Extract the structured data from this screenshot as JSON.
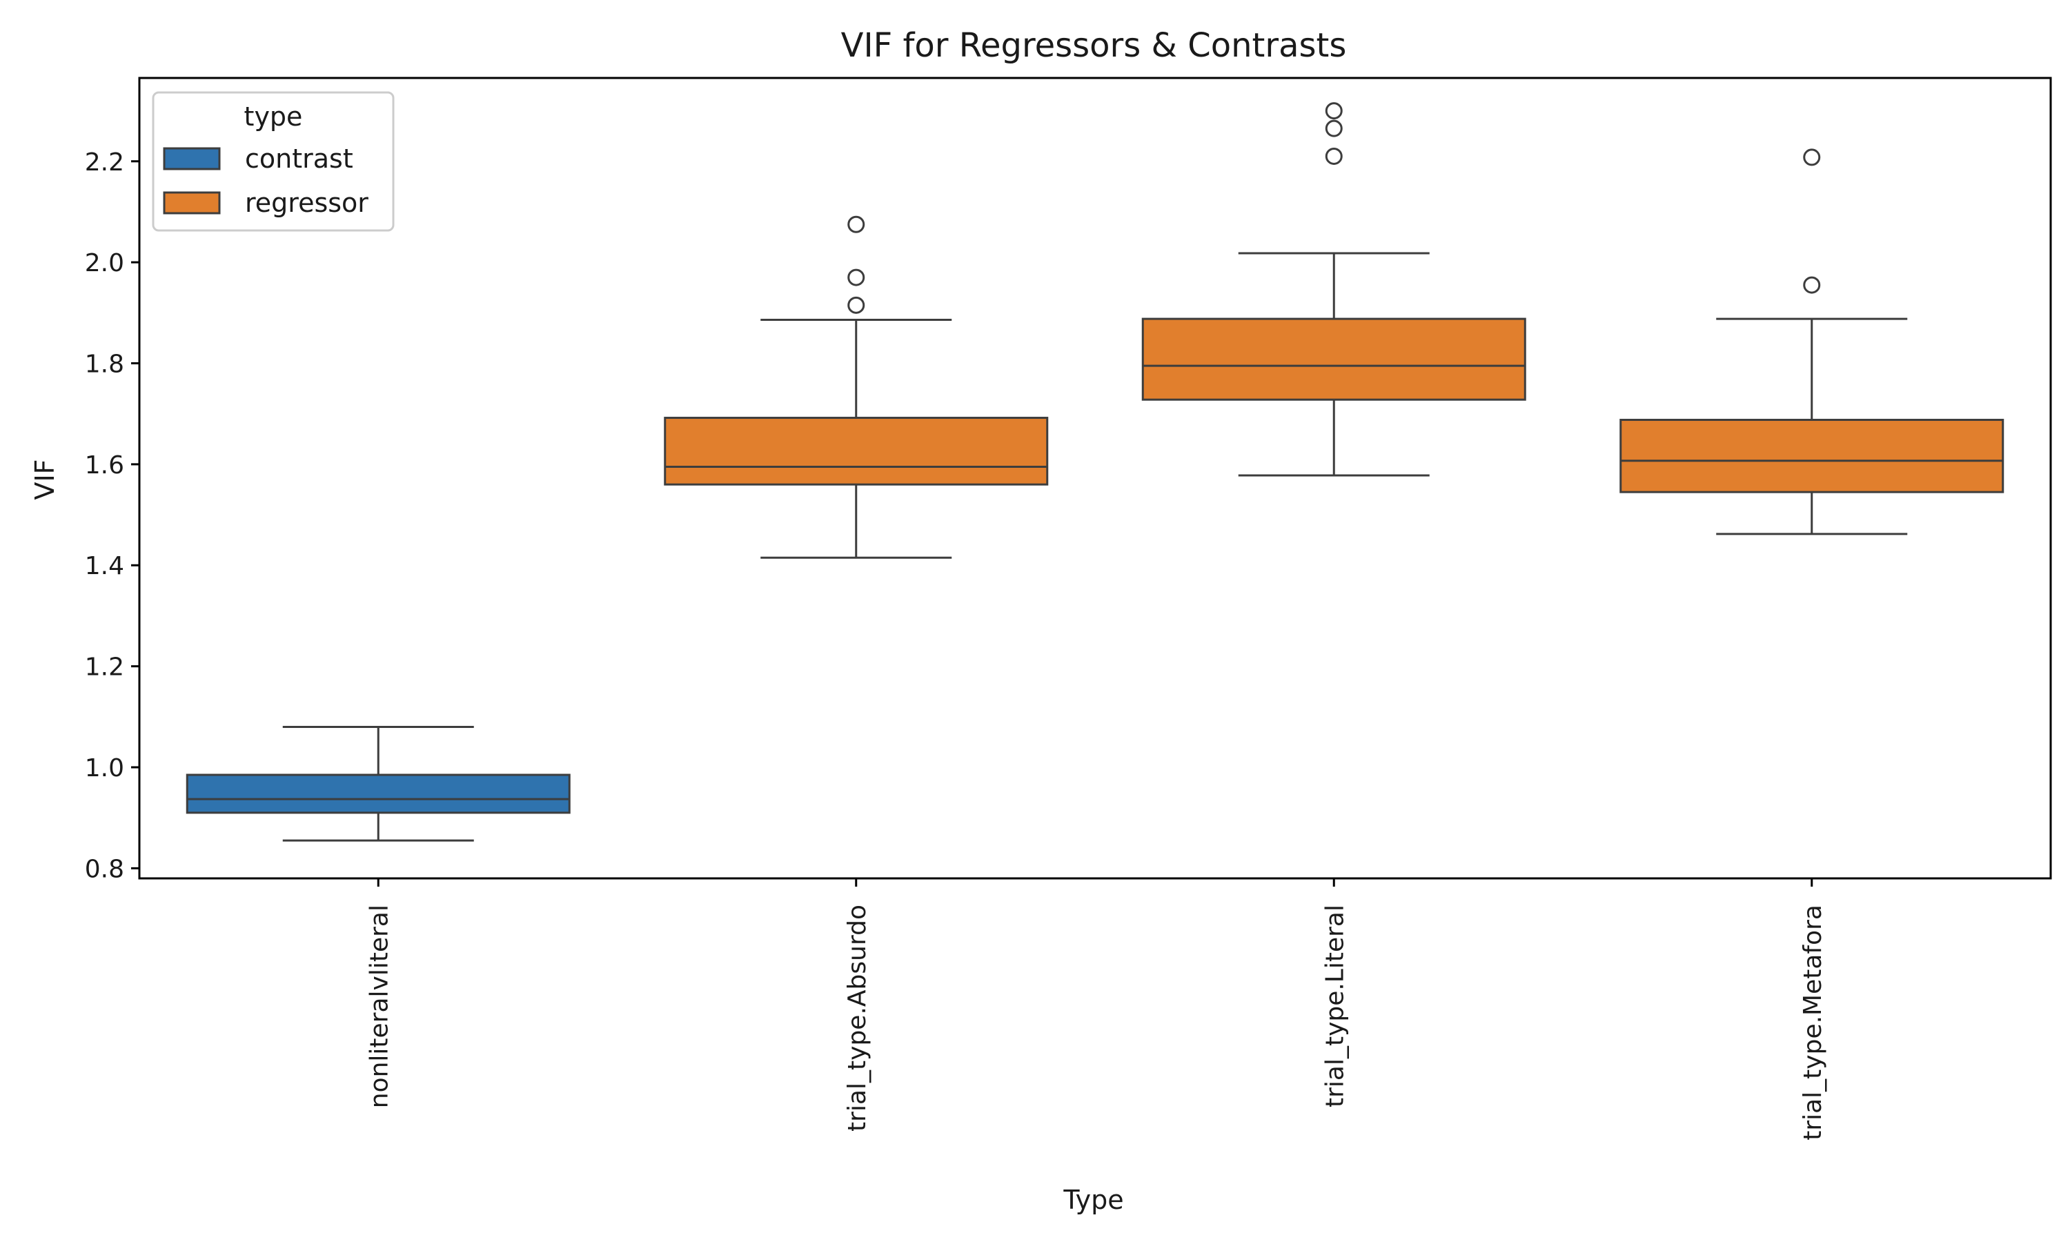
{
  "chart_data": {
    "type": "box",
    "title": "VIF for Regressors & Contrasts",
    "xlabel": "Type",
    "ylabel": "VIF",
    "ylim": [
      0.78,
      2.365
    ],
    "yticks": [
      0.8,
      1.0,
      1.2,
      1.4,
      1.6,
      1.8,
      2.0,
      2.2
    ],
    "ytick_labels": [
      "0.8",
      "1.0",
      "1.2",
      "1.4",
      "1.6",
      "1.8",
      "2.0",
      "2.2"
    ],
    "grid": false,
    "legend": {
      "title": "type",
      "position": "top-left",
      "entries": [
        {
          "label": "contrast",
          "color": "#2f73ae"
        },
        {
          "label": "regressor",
          "color": "#e17f2d"
        }
      ]
    },
    "categories": [
      "nonliteralvliteral",
      "trial_type.Absurdo",
      "trial_type.Literal",
      "trial_type.Metafora"
    ],
    "boxes": [
      {
        "category": "nonliteralvliteral",
        "group": "contrast",
        "whisker_low": 0.855,
        "q1": 0.91,
        "median": 0.937,
        "q3": 0.985,
        "whisker_high": 1.08,
        "outliers": []
      },
      {
        "category": "trial_type.Absurdo",
        "group": "regressor",
        "whisker_low": 1.415,
        "q1": 1.56,
        "median": 1.595,
        "q3": 1.692,
        "whisker_high": 1.886,
        "outliers": [
          1.915,
          1.97,
          2.075
        ]
      },
      {
        "category": "trial_type.Literal",
        "group": "regressor",
        "whisker_low": 1.578,
        "q1": 1.728,
        "median": 1.795,
        "q3": 1.888,
        "whisker_high": 2.018,
        "outliers": [
          2.21,
          2.265,
          2.3
        ]
      },
      {
        "category": "trial_type.Metafora",
        "group": "regressor",
        "whisker_low": 1.462,
        "q1": 1.545,
        "median": 1.607,
        "q3": 1.688,
        "whisker_high": 1.888,
        "outliers": [
          1.955,
          2.208
        ]
      }
    ],
    "colors": {
      "edge": "#3d3d3d",
      "axis": "#000000",
      "outlier_fill": "#ffffff"
    }
  }
}
